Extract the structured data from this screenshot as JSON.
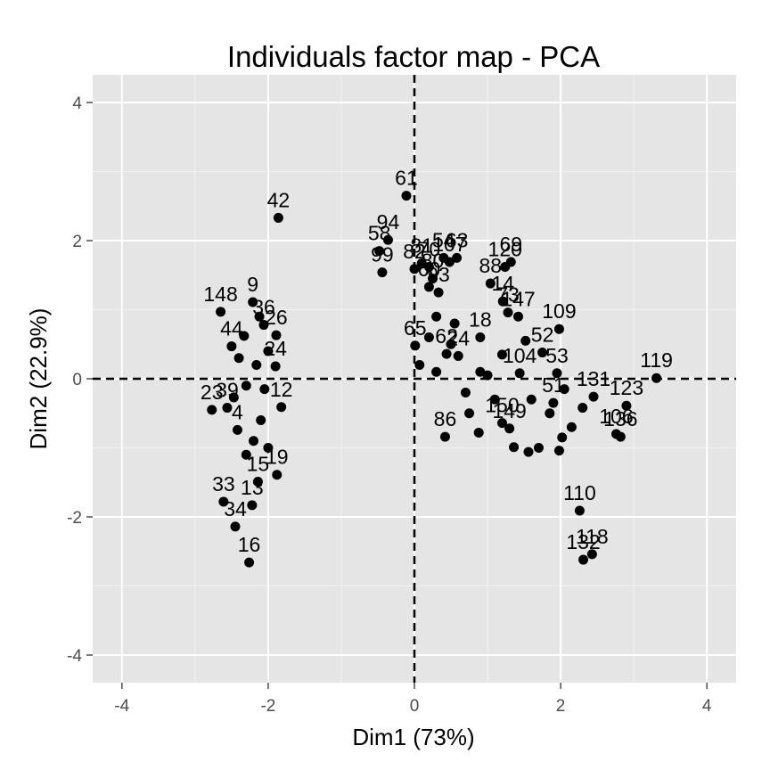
{
  "chart_data": {
    "type": "scatter",
    "title": "Individuals factor map - PCA",
    "xlabel": "Dim1 (73%)",
    "ylabel": "Dim2 (22.9%)",
    "xlim": [
      -4.4,
      4.4
    ],
    "ylim": [
      -4.4,
      4.4
    ],
    "xticks": [
      -4,
      -2,
      0,
      2,
      4
    ],
    "yticks": [
      -4,
      -2,
      0,
      2,
      4
    ],
    "xtick_labels": [
      "-4",
      "-2",
      "0",
      "2",
      "4"
    ],
    "ytick_labels": [
      "-4",
      "-2",
      "0",
      "2",
      "4"
    ],
    "grid": true,
    "reference_lines": {
      "x": 0,
      "y": 0,
      "style": "dashed"
    },
    "colors": {
      "panel": "#e5e5e5",
      "grid": "#ffffff",
      "points": "#000000"
    },
    "points": [
      {
        "label": "42",
        "x": -1.86,
        "y": 2.33
      },
      {
        "label": "61",
        "x": -0.11,
        "y": 2.65
      },
      {
        "label": "94",
        "x": -0.36,
        "y": 2.01
      },
      {
        "label": "58",
        "x": -0.48,
        "y": 1.85
      },
      {
        "label": "99",
        "x": -0.44,
        "y": 1.54
      },
      {
        "label": "82",
        "x": 0.0,
        "y": 1.59
      },
      {
        "label": "81",
        "x": 0.1,
        "y": 1.67
      },
      {
        "label": "70",
        "x": 0.2,
        "y": 1.62
      },
      {
        "label": "54",
        "x": 0.4,
        "y": 1.75
      },
      {
        "label": "63",
        "x": 0.58,
        "y": 1.75
      },
      {
        "label": "107",
        "x": 0.48,
        "y": 1.69
      },
      {
        "label": "80",
        "x": 0.25,
        "y": 1.45
      },
      {
        "label": "60",
        "x": 0.2,
        "y": 1.33
      },
      {
        "label": "93",
        "x": 0.33,
        "y": 1.25
      },
      {
        "label": "120",
        "x": 1.24,
        "y": 1.62
      },
      {
        "label": "69",
        "x": 1.32,
        "y": 1.69
      },
      {
        "label": "88",
        "x": 1.04,
        "y": 1.38
      },
      {
        "label": "14",
        "x": 1.21,
        "y": 1.12
      },
      {
        "label": "147",
        "x": 1.42,
        "y": 0.9
      },
      {
        "label": "73",
        "x": 1.28,
        "y": 0.96
      },
      {
        "label": "109",
        "x": 1.98,
        "y": 0.72
      },
      {
        "label": "119",
        "x": 3.31,
        "y": 0.01
      },
      {
        "label": "123",
        "x": 2.9,
        "y": -0.39
      },
      {
        "label": "131",
        "x": 2.45,
        "y": -0.26
      },
      {
        "label": "106",
        "x": 2.76,
        "y": -0.8
      },
      {
        "label": "136",
        "x": 2.82,
        "y": -0.84
      },
      {
        "label": "110",
        "x": 2.26,
        "y": -1.91
      },
      {
        "label": "118",
        "x": 2.43,
        "y": -2.54
      },
      {
        "label": "132",
        "x": 2.31,
        "y": -2.62
      },
      {
        "label": "86",
        "x": 0.42,
        "y": -0.84
      },
      {
        "label": "51",
        "x": 1.9,
        "y": -0.35
      },
      {
        "label": "65",
        "x": 0.01,
        "y": 0.48
      },
      {
        "label": "62",
        "x": 0.44,
        "y": 0.36
      },
      {
        "label": "24",
        "x": 0.6,
        "y": 0.33
      },
      {
        "label": "18",
        "x": 0.9,
        "y": 0.6
      },
      {
        "label": "52",
        "x": 1.75,
        "y": 0.38
      },
      {
        "label": "53",
        "x": 1.95,
        "y": 0.08
      },
      {
        "label": "104",
        "x": 1.44,
        "y": 0.08
      },
      {
        "label": "150",
        "x": 1.2,
        "y": -0.64
      },
      {
        "label": "149",
        "x": 1.3,
        "y": -0.72
      },
      {
        "label": "9",
        "x": -2.21,
        "y": 1.11
      },
      {
        "label": "148",
        "x": -2.65,
        "y": 0.97
      },
      {
        "label": "36",
        "x": -2.06,
        "y": 0.78
      },
      {
        "label": "26",
        "x": -1.89,
        "y": 0.63
      },
      {
        "label": "44",
        "x": -2.5,
        "y": 0.47
      },
      {
        "label": "24b",
        "x": -1.9,
        "y": 0.18
      },
      {
        "label": "23",
        "x": -2.77,
        "y": -0.45
      },
      {
        "label": "39",
        "x": -2.56,
        "y": -0.42
      },
      {
        "label": "12",
        "x": -1.82,
        "y": -0.41
      },
      {
        "label": "4",
        "x": -2.42,
        "y": -0.74
      },
      {
        "label": "19",
        "x": -1.88,
        "y": -1.39
      },
      {
        "label": "15",
        "x": -2.14,
        "y": -1.49
      },
      {
        "label": "33",
        "x": -2.61,
        "y": -1.78
      },
      {
        "label": "34",
        "x": -2.45,
        "y": -2.14
      },
      {
        "label": "16",
        "x": -2.26,
        "y": -2.66
      },
      {
        "label": "13",
        "x": -2.22,
        "y": -1.83
      },
      {
        "label": "",
        "x": -2.3,
        "y": -0.1
      },
      {
        "label": "",
        "x": -2.16,
        "y": 0.2
      },
      {
        "label": "",
        "x": -2.05,
        "y": -0.15
      },
      {
        "label": "",
        "x": -2.0,
        "y": 0.4
      },
      {
        "label": "",
        "x": -2.1,
        "y": -0.6
      },
      {
        "label": "",
        "x": -2.3,
        "y": -1.1
      },
      {
        "label": "",
        "x": -2.2,
        "y": -0.9
      },
      {
        "label": "",
        "x": -2.33,
        "y": 0.62
      },
      {
        "label": "",
        "x": -2.12,
        "y": 0.9
      },
      {
        "label": "",
        "x": -2.4,
        "y": 0.3
      },
      {
        "label": "",
        "x": -2.47,
        "y": -0.27
      },
      {
        "label": "",
        "x": -2.0,
        "y": -1.0
      },
      {
        "label": "",
        "x": 0.3,
        "y": 0.9
      },
      {
        "label": "",
        "x": 0.2,
        "y": 0.6
      },
      {
        "label": "",
        "x": 0.55,
        "y": 0.8
      },
      {
        "label": "",
        "x": 0.07,
        "y": 0.2
      },
      {
        "label": "",
        "x": 0.3,
        "y": 0.1
      },
      {
        "label": "",
        "x": 0.7,
        "y": -0.2
      },
      {
        "label": "",
        "x": 0.9,
        "y": 0.1
      },
      {
        "label": "",
        "x": 1.1,
        "y": -0.3
      },
      {
        "label": "",
        "x": 0.75,
        "y": -0.5
      },
      {
        "label": "",
        "x": 0.88,
        "y": -0.78
      },
      {
        "label": "",
        "x": 1.36,
        "y": -0.99
      },
      {
        "label": "",
        "x": 1.56,
        "y": -1.06
      },
      {
        "label": "",
        "x": 1.7,
        "y": -1.0
      },
      {
        "label": "",
        "x": 1.98,
        "y": -1.04
      },
      {
        "label": "",
        "x": 1.85,
        "y": -0.5
      },
      {
        "label": "",
        "x": 1.6,
        "y": -0.3
      },
      {
        "label": "",
        "x": 2.05,
        "y": -0.15
      },
      {
        "label": "",
        "x": 1.52,
        "y": 0.55
      },
      {
        "label": "",
        "x": 1.2,
        "y": 0.35
      },
      {
        "label": "",
        "x": 1.0,
        "y": 0.05
      },
      {
        "label": "",
        "x": 0.5,
        "y": 0.5
      },
      {
        "label": "",
        "x": 2.15,
        "y": -0.7
      },
      {
        "label": "",
        "x": 2.3,
        "y": -0.42
      },
      {
        "label": "",
        "x": 2.02,
        "y": -0.85
      }
    ]
  }
}
